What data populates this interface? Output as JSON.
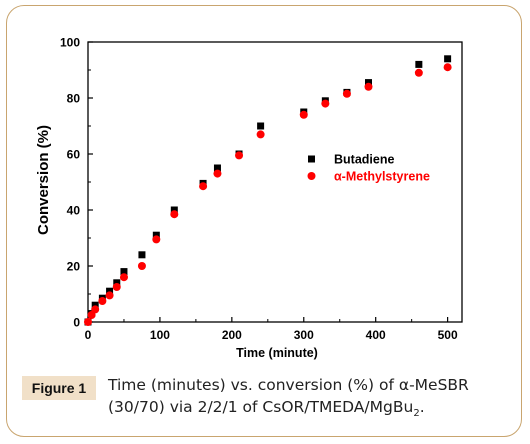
{
  "chart_data": {
    "type": "scatter",
    "xlabel": "Time (minute)",
    "ylabel": "Conversion (%)",
    "xlim": [
      0,
      520
    ],
    "ylim": [
      0,
      100
    ],
    "x_ticks": [
      0,
      100,
      200,
      300,
      400,
      500
    ],
    "y_ticks": [
      0,
      20,
      40,
      60,
      80,
      100
    ],
    "legend_position": "right-middle",
    "series": [
      {
        "name": "Butadiene",
        "marker": "square",
        "color": "#000000",
        "x": [
          0,
          5,
          10,
          20,
          30,
          40,
          50,
          75,
          95,
          120,
          160,
          180,
          210,
          240,
          300,
          330,
          360,
          390,
          460,
          500
        ],
        "y": [
          0,
          3,
          6,
          8.5,
          11,
          14,
          18,
          24,
          31,
          40,
          49.5,
          55,
          60,
          70,
          75,
          79,
          82,
          85.5,
          92,
          94
        ]
      },
      {
        "name": "α-Methylstyrene",
        "marker": "circle",
        "color": "#ff0000",
        "x": [
          0,
          5,
          10,
          20,
          30,
          40,
          50,
          75,
          95,
          120,
          160,
          180,
          210,
          240,
          300,
          330,
          360,
          390,
          460,
          500
        ],
        "y": [
          0,
          2.5,
          4.5,
          7.5,
          9.5,
          12.5,
          16,
          20,
          29.5,
          38.5,
          48.5,
          53,
          59.5,
          67,
          74,
          78,
          81.5,
          84,
          89,
          91
        ]
      }
    ]
  },
  "caption": {
    "label": "Figure 1",
    "text_main": "Time (minutes) vs. conversion (%) of α-MeSBR (30/70) via 2/2/1 of CsOR/TMEDA/MgBu",
    "text_sub": "2",
    "text_end": "."
  }
}
